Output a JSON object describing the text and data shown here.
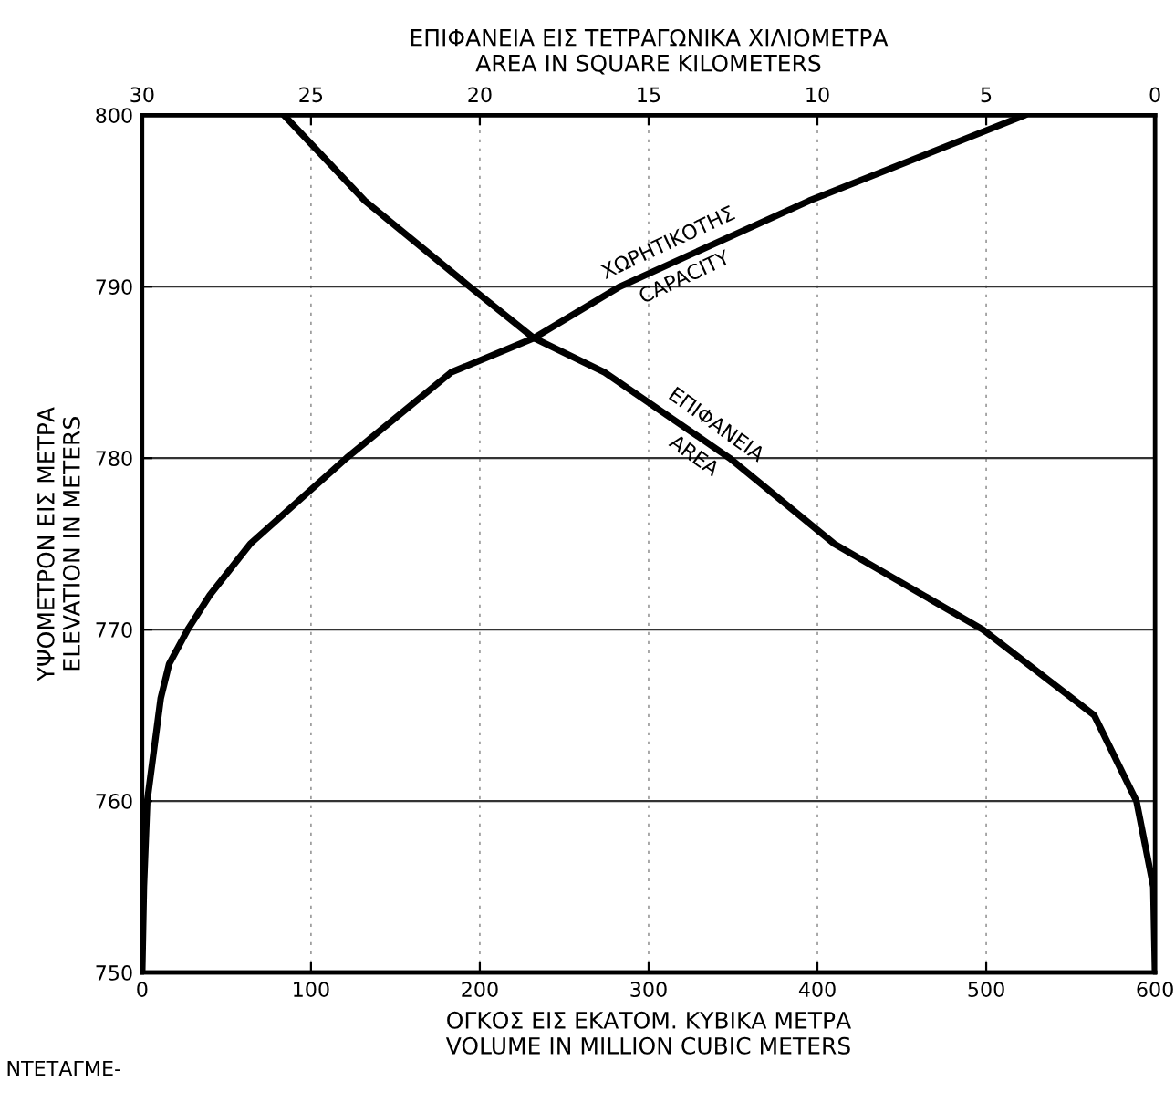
{
  "chart_data": {
    "type": "line",
    "xlabel": "ΟΓΚΟΣ ΕΙΣ ΕΚΑΤΟΜ. ΚΥΒΙΚΑ ΜΕΤΡΑ\nVOLUME IN MILLION CUBIC METERS",
    "x2label": "ΕΠΙΦΑΝΕΙΑ ΕΙΣ ΤΕΤΡΑΓΩΝΙΚΑ ΧΙΛΙΟΜΕΤΡΑ\nAREA IN SQUARE KILOMETERS",
    "ylabel": "ΥΨΟΜΕΤΡΟΝ ΕΙΣ ΜΕΤΡΑ\nELEVATION IN METERS",
    "xlim": [
      0,
      600
    ],
    "xticks": [
      0,
      100,
      200,
      300,
      400,
      500,
      600
    ],
    "x2lim": [
      30,
      0
    ],
    "x2ticks": [
      30,
      25,
      20,
      15,
      10,
      5,
      0
    ],
    "ylim": [
      750,
      800
    ],
    "yticks": [
      750,
      760,
      770,
      780,
      790,
      800
    ],
    "grid": true,
    "marker": "none",
    "line_style": "solid",
    "series": [
      {
        "name": "ΧΩΡΗΤΙΚΟΤΗΣ\nCAPACITY",
        "color": "#000000",
        "x": [
          0,
          1,
          3,
          11,
          16,
          27,
          40,
          64,
          121,
          183,
          232,
          283,
          395,
          523
        ],
        "values": [
          750,
          755,
          760,
          766,
          768,
          770,
          772,
          775,
          780,
          785,
          787,
          790,
          795,
          800
        ]
      },
      {
        "name": "ΕΠΙΦΑΝΕΙΑ\nAREA",
        "color": "#000000",
        "axis": "x2",
        "x": [
          0,
          0.05,
          0.55,
          1.8,
          5.1,
          9.5,
          12.6,
          16.3,
          18.4,
          20.3,
          23.4,
          25.8
        ],
        "values": [
          750,
          755,
          760,
          765,
          770,
          775,
          780,
          785,
          787,
          790,
          795,
          800
        ]
      }
    ],
    "annotations": [
      "ΝΤΕΤΑΓΜΕ-"
    ]
  }
}
